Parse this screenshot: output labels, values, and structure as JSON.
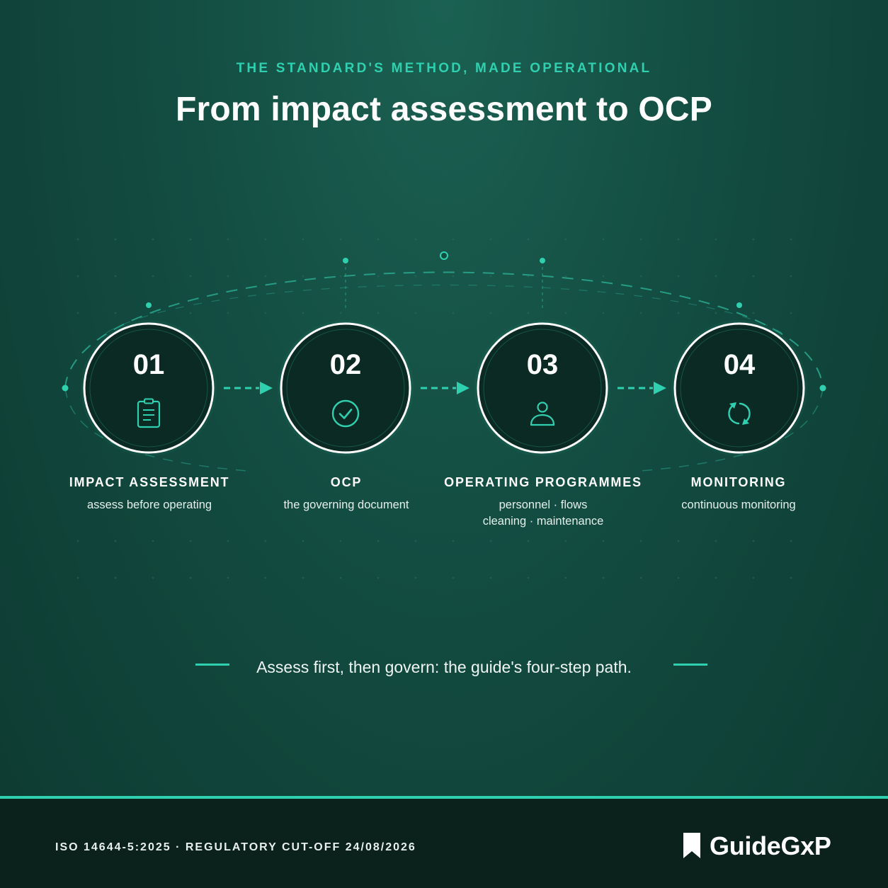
{
  "header": {
    "eyebrow": "THE STANDARD'S METHOD, MADE OPERATIONAL",
    "title": "From impact assessment to OCP"
  },
  "steps": [
    {
      "number": "01",
      "icon": "clipboard-icon",
      "title": "IMPACT ASSESSMENT",
      "subtitle": [
        "assess before operating"
      ]
    },
    {
      "number": "02",
      "icon": "check-circle-icon",
      "title": "OCP",
      "subtitle": [
        "the governing document"
      ]
    },
    {
      "number": "03",
      "icon": "person-icon",
      "title": "OPERATING PROGRAMMES",
      "subtitle": [
        "personnel · flows",
        "cleaning · maintenance"
      ]
    },
    {
      "number": "04",
      "icon": "refresh-cycle-icon",
      "title": "MONITORING",
      "subtitle": [
        "continuous monitoring"
      ]
    }
  ],
  "caption": "Assess first, then govern: the guide's four-step path.",
  "footer": {
    "text": "ISO 14644-5:2025 · REGULATORY CUT-OFF 24/08/2026",
    "brand": "GuideGxP",
    "brand_icon": "bookmark-icon"
  },
  "colors": {
    "accent": "#2fd0b0",
    "background": "#134c41",
    "circle_fill": "#0b2a24",
    "footer_bg": "#0b211c"
  }
}
